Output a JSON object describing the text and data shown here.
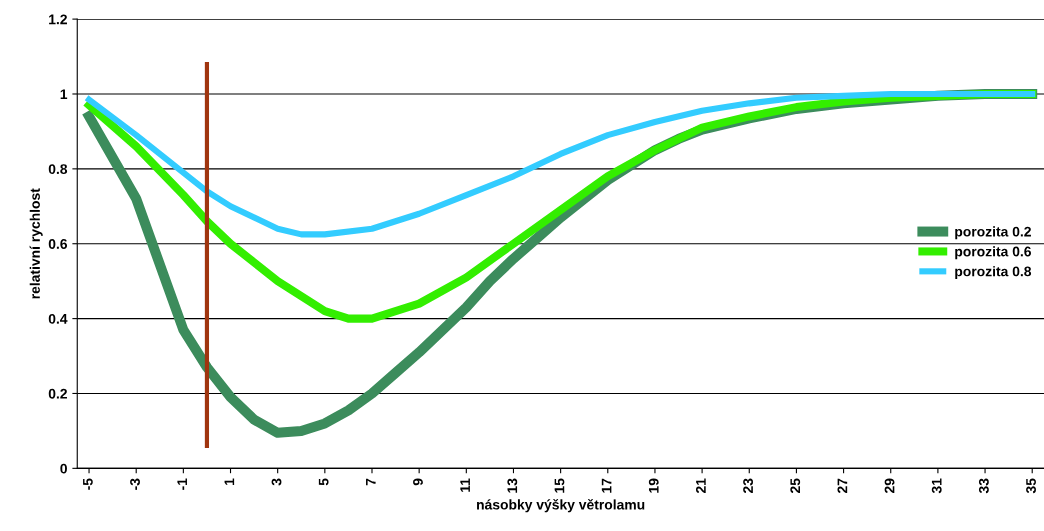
{
  "chart_data": {
    "type": "line",
    "xlabel": "násobky výšky větrolamu",
    "ylabel": "relativní rychlost",
    "xlim": [
      -5.5,
      35.5
    ],
    "xticks": [
      -5,
      -3,
      -1,
      1,
      3,
      5,
      7,
      9,
      11,
      13,
      15,
      17,
      19,
      21,
      23,
      25,
      27,
      29,
      31,
      33,
      35
    ],
    "ylim": [
      0,
      1.2
    ],
    "yticks": [
      0,
      0.2,
      0.4,
      0.6,
      0.8,
      1,
      1.2
    ],
    "grid": "y",
    "legend": "right",
    "marker": "none",
    "line_style": "solid",
    "series": [
      {
        "name": "porozita 0.2",
        "color": "#3c8c5c",
        "x": [
          -5,
          -3,
          -1,
          0,
          1,
          2,
          3,
          4,
          5,
          6,
          7,
          8,
          9,
          10,
          11,
          12,
          13,
          14,
          15,
          16,
          17,
          18,
          19,
          20,
          21,
          23,
          25,
          27,
          29,
          31,
          33,
          35
        ],
        "values": [
          0.94,
          0.72,
          0.37,
          0.27,
          0.19,
          0.13,
          0.095,
          0.1,
          0.12,
          0.155,
          0.2,
          0.255,
          0.31,
          0.37,
          0.43,
          0.5,
          0.56,
          0.615,
          0.67,
          0.72,
          0.77,
          0.81,
          0.85,
          0.88,
          0.905,
          0.935,
          0.96,
          0.975,
          0.985,
          0.995,
          1.0,
          1.0
        ]
      },
      {
        "name": "porozita 0.6",
        "color": "#33ee00",
        "x": [
          -5,
          -3,
          -1,
          0,
          1,
          3,
          5,
          6,
          7,
          9,
          11,
          13,
          15,
          17,
          19,
          21,
          23,
          25,
          27,
          29,
          31,
          33,
          35
        ],
        "values": [
          0.97,
          0.86,
          0.73,
          0.66,
          0.6,
          0.5,
          0.42,
          0.4,
          0.4,
          0.44,
          0.51,
          0.6,
          0.69,
          0.78,
          0.85,
          0.91,
          0.94,
          0.965,
          0.98,
          0.99,
          0.995,
          1.0,
          1.0
        ]
      },
      {
        "name": "porozita 0.8",
        "color": "#33ccff",
        "x": [
          -5,
          -3,
          -1,
          0,
          1,
          3,
          4,
          5,
          7,
          9,
          11,
          13,
          15,
          17,
          19,
          21,
          23,
          25,
          27,
          29,
          35
        ],
        "values": [
          0.985,
          0.89,
          0.79,
          0.74,
          0.7,
          0.64,
          0.625,
          0.625,
          0.64,
          0.68,
          0.73,
          0.78,
          0.84,
          0.89,
          0.925,
          0.955,
          0.975,
          0.99,
          0.995,
          1.0,
          1.0
        ]
      },
      {
        "color": "#a0350f",
        "x": [
          0,
          0
        ],
        "values": [
          0.06,
          1.08
        ]
      }
    ]
  }
}
